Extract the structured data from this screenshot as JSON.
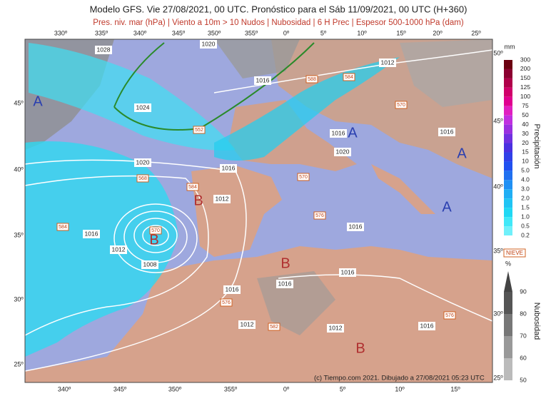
{
  "header": {
    "title": "Modelo GFS. Vie 27/08/2021, 00 UTC. Pronóstico para el Sáb 11/09/2021, 00 UTC (H+360)",
    "subtitle": "Pres. niv. mar (hPa) | Viento a 10m > 10 Nudos | Nubosidad | 6 H Prec | Espesor 500-1000 hPa (dam)"
  },
  "map": {
    "lon_top": [
      "330º",
      "335º",
      "340º",
      "345º",
      "350º",
      "355º",
      "0º",
      "5º",
      "10º",
      "15º",
      "20º",
      "25º"
    ],
    "lon_bottom": [
      "340º",
      "345º",
      "350º",
      "355º",
      "0º",
      "5º",
      "10º",
      "15º"
    ],
    "lat_left": [
      "45º",
      "40º",
      "35º",
      "30º",
      "25º"
    ],
    "lat_right": [
      "50º",
      "45º",
      "40º",
      "35º",
      "30º",
      "25º"
    ],
    "isobars": [
      "1028",
      "1020",
      "1012",
      "1016",
      "1024",
      "1016",
      "1016",
      "1020",
      "1020",
      "1016",
      "1012",
      "1016",
      "1016",
      "1012",
      "1008",
      "1016",
      "1016",
      "1016",
      "1012",
      "1012",
      "1016"
    ],
    "thickness": [
      "552",
      "568",
      "584",
      "570",
      "576",
      "584",
      "570",
      "588",
      "584",
      "570",
      "576",
      "582",
      "576"
    ],
    "centers": [
      "A",
      "A",
      "A",
      "A",
      "B",
      "B",
      "B",
      "B"
    ]
  },
  "legend": {
    "precip_unit": "mm",
    "precip_title": "Precipitación",
    "precip_levels": [
      "300",
      "200",
      "150",
      "125",
      "100",
      "75",
      "50",
      "40",
      "30",
      "20",
      "15",
      "10",
      "5.0",
      "4.0",
      "3.0",
      "2.0",
      "1.5",
      "1.0",
      "0.5",
      "0.2"
    ],
    "snow": "NIEVE",
    "cloud_unit": "%",
    "cloud_title": "Nubosidad",
    "cloud_levels": [
      "90",
      "80",
      "70",
      "60",
      "50"
    ]
  },
  "credit": "(c) Tiempo.com 2021. Dibujado a 27/08/2021 05:23 UTC"
}
